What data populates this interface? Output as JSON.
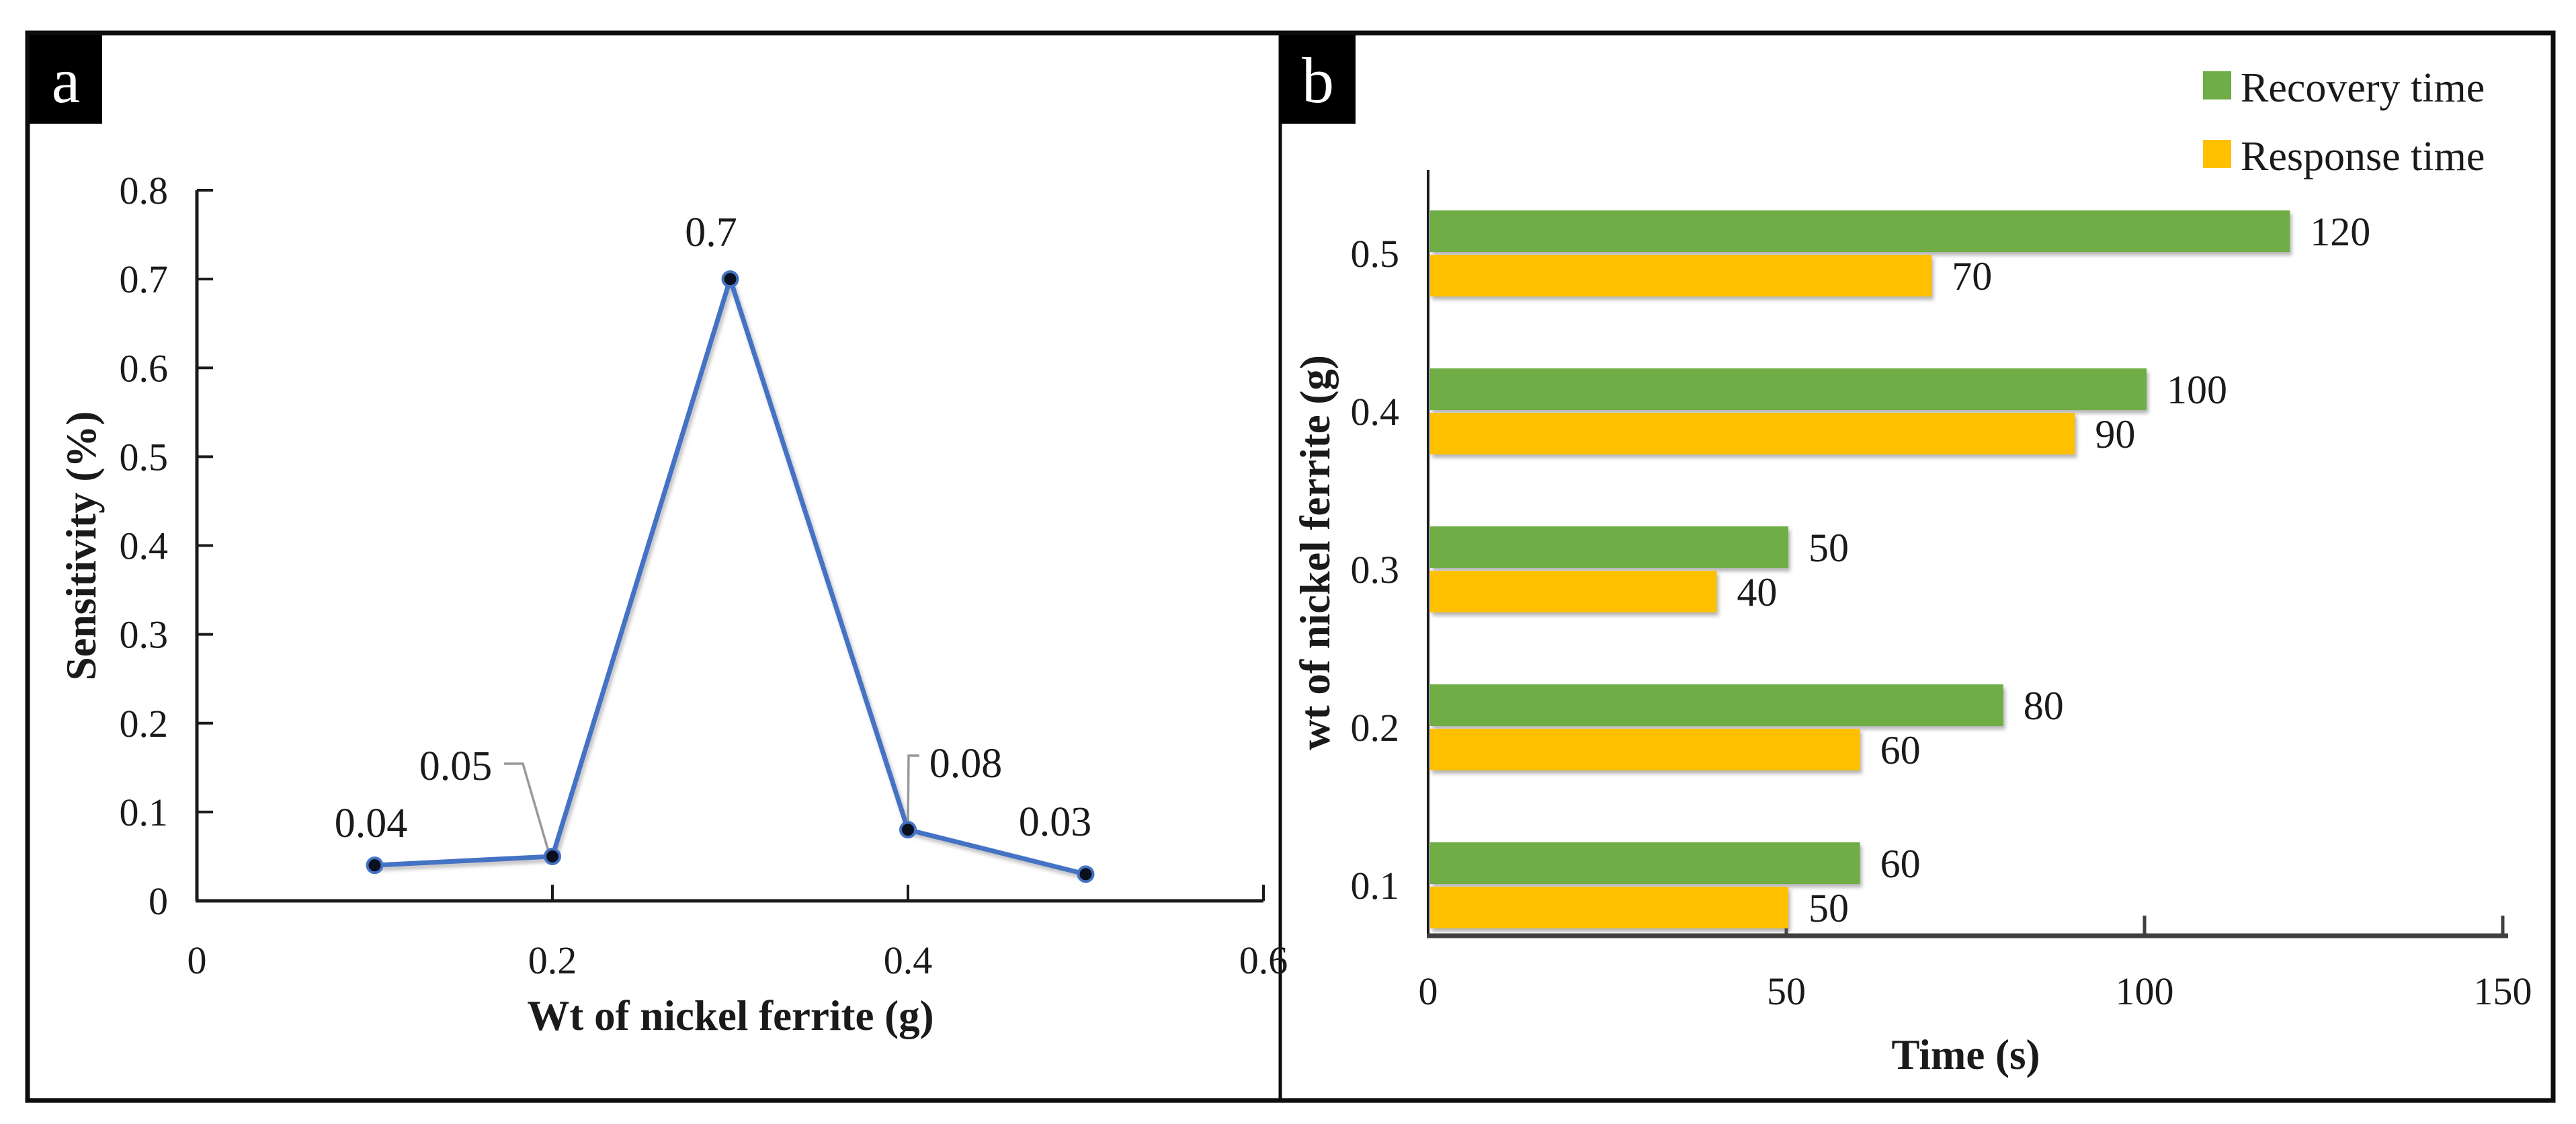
{
  "figure": {
    "panels": [
      {
        "label": "a"
      },
      {
        "label": "b"
      }
    ]
  },
  "colors": {
    "line": "#4472C4",
    "marker_fill": "#0b101f",
    "leader": "#999999",
    "recovery_green": "#70AD47",
    "response_yellow": "#FFC000",
    "axis_dark": "#1a1a1a",
    "axis_gray": "#3f3f3f",
    "border_black": "#0d0d0d"
  },
  "chart_data": [
    {
      "id": "a",
      "type": "line",
      "title": "",
      "xlabel": "Wt of nickel ferrite (g)",
      "ylabel": "Sensitivity (%)",
      "x": [
        0.1,
        0.2,
        0.3,
        0.4,
        0.5
      ],
      "y": [
        0.04,
        0.05,
        0.7,
        0.08,
        0.03
      ],
      "point_labels": [
        "0.04",
        "0.05",
        "0.7",
        "0.08",
        "0.03"
      ],
      "xlim": [
        0,
        0.6
      ],
      "ylim": [
        0,
        0.8
      ],
      "xticks": [
        0,
        0.2,
        0.4,
        0.6
      ],
      "xtick_labels": [
        "0",
        "0.2",
        "0.4",
        "0.6"
      ],
      "yticks": [
        0,
        0.1,
        0.2,
        0.3,
        0.4,
        0.5,
        0.6,
        0.7,
        0.8
      ],
      "ytick_labels": [
        "0",
        "0.1",
        "0.2",
        "0.3",
        "0.4",
        "0.5",
        "0.6",
        "0.7",
        "0.8"
      ],
      "grid": false,
      "legend": null,
      "line_color": "#4472C4",
      "marker": "filled-circle"
    },
    {
      "id": "b",
      "type": "bar",
      "orientation": "horizontal",
      "title": "",
      "xlabel": "Time (s)",
      "ylabel": "wt of nickel ferrite (g)",
      "categories": [
        "0.5",
        "0.4",
        "0.3",
        "0.2",
        "0.1"
      ],
      "series": [
        {
          "name": "Recovery time",
          "color": "#70AD47",
          "values": [
            120,
            100,
            50,
            80,
            60
          ]
        },
        {
          "name": "Response time",
          "color": "#FFC000",
          "values": [
            70,
            90,
            40,
            60,
            50
          ]
        }
      ],
      "xlim": [
        0,
        150
      ],
      "xticks": [
        0,
        50,
        100,
        150
      ],
      "xtick_labels": [
        "0",
        "50",
        "100",
        "150"
      ],
      "value_labels": true,
      "grid": false,
      "legend_position": "top-right"
    }
  ]
}
